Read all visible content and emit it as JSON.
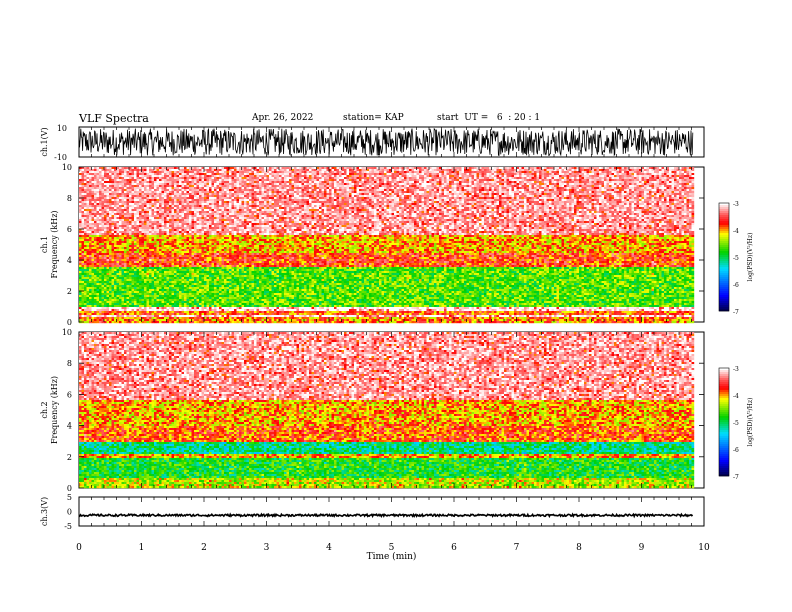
{
  "header": {
    "title": "VLF Spectra",
    "date": "Apr. 26, 2022",
    "station": "station= KAP",
    "start": "start  UT =   6  : 20 : 1"
  },
  "chart_data": [
    {
      "type": "line",
      "panel": "ch1-waveform",
      "ylabel": "ch.1(V)",
      "ylim": [
        -10,
        10
      ],
      "y_ticks": [
        "10",
        "-10"
      ],
      "xlim": [
        0,
        10
      ],
      "x_data_end": 9.83,
      "description_of_values": "dense oscillating waveform filling roughly -9 to +9 V",
      "amplitude": 9,
      "color": "#000000"
    },
    {
      "type": "heatmap",
      "panel": "ch1-spectrogram",
      "ylabel": "ch.1",
      "ylabel2": "Frequency  (kHz)",
      "ylim": [
        0,
        10
      ],
      "y_ticks": [
        "0",
        "2",
        "4",
        "6",
        "8",
        "10"
      ],
      "xlim": [
        0,
        10
      ],
      "x_data_end": 9.83,
      "bands": [
        {
          "from": 0,
          "to": 0.3,
          "level": -3.9
        },
        {
          "from": 0.3,
          "to": 0.45,
          "level": -3.0
        },
        {
          "from": 0.45,
          "to": 0.75,
          "level": -3.8
        },
        {
          "from": 0.75,
          "to": 1.0,
          "level": -3.0
        },
        {
          "from": 1.0,
          "to": 3.5,
          "level": -4.6
        },
        {
          "from": 3.5,
          "to": 4.5,
          "level": -3.7
        },
        {
          "from": 4.5,
          "to": 5.6,
          "level": -4.0
        },
        {
          "from": 5.6,
          "to": 10.0,
          "level": -3.2
        }
      ],
      "colorbar": {
        "label": "log(PSD)(V²/Hz)",
        "range": [
          -7,
          -3
        ],
        "ticks": [
          "-3",
          "-4",
          "-5",
          "-6",
          "-7"
        ]
      }
    },
    {
      "type": "heatmap",
      "panel": "ch2-spectrogram",
      "ylabel": "ch.2",
      "ylabel2": "Frequency  (kHz)",
      "ylim": [
        0,
        10
      ],
      "y_ticks": [
        "0",
        "2",
        "4",
        "6",
        "8",
        "10"
      ],
      "xlim": [
        0,
        10
      ],
      "x_data_end": 9.83,
      "bands": [
        {
          "from": 0,
          "to": 0.6,
          "level": -4.3
        },
        {
          "from": 0.6,
          "to": 1.9,
          "level": -4.8
        },
        {
          "from": 1.9,
          "to": 2.2,
          "level": -4.0
        },
        {
          "from": 2.2,
          "to": 3.0,
          "level": -5.1
        },
        {
          "from": 3.0,
          "to": 4.0,
          "level": -3.8
        },
        {
          "from": 4.0,
          "to": 5.6,
          "level": -4.0
        },
        {
          "from": 5.6,
          "to": 10.0,
          "level": -3.2
        }
      ],
      "colorbar": {
        "label": "log(PSD)(V²/Hz)",
        "range": [
          -7,
          -3
        ],
        "ticks": [
          "-3",
          "-4",
          "-5",
          "-6",
          "-7"
        ]
      }
    },
    {
      "type": "line",
      "panel": "ch3-waveform",
      "ylabel": "ch.3(V)",
      "ylim": [
        -5,
        5
      ],
      "y_ticks": [
        "5",
        "0",
        "-5"
      ],
      "xlim": [
        0,
        10
      ],
      "x_data_end": 9.83,
      "xlabel": "Time  (min)",
      "x_ticks": [
        "0",
        "1",
        "2",
        "3",
        "4",
        "5",
        "6",
        "7",
        "8",
        "9",
        "10"
      ],
      "baseline": -1.3,
      "amplitude": 0.35,
      "color": "#000000"
    }
  ]
}
